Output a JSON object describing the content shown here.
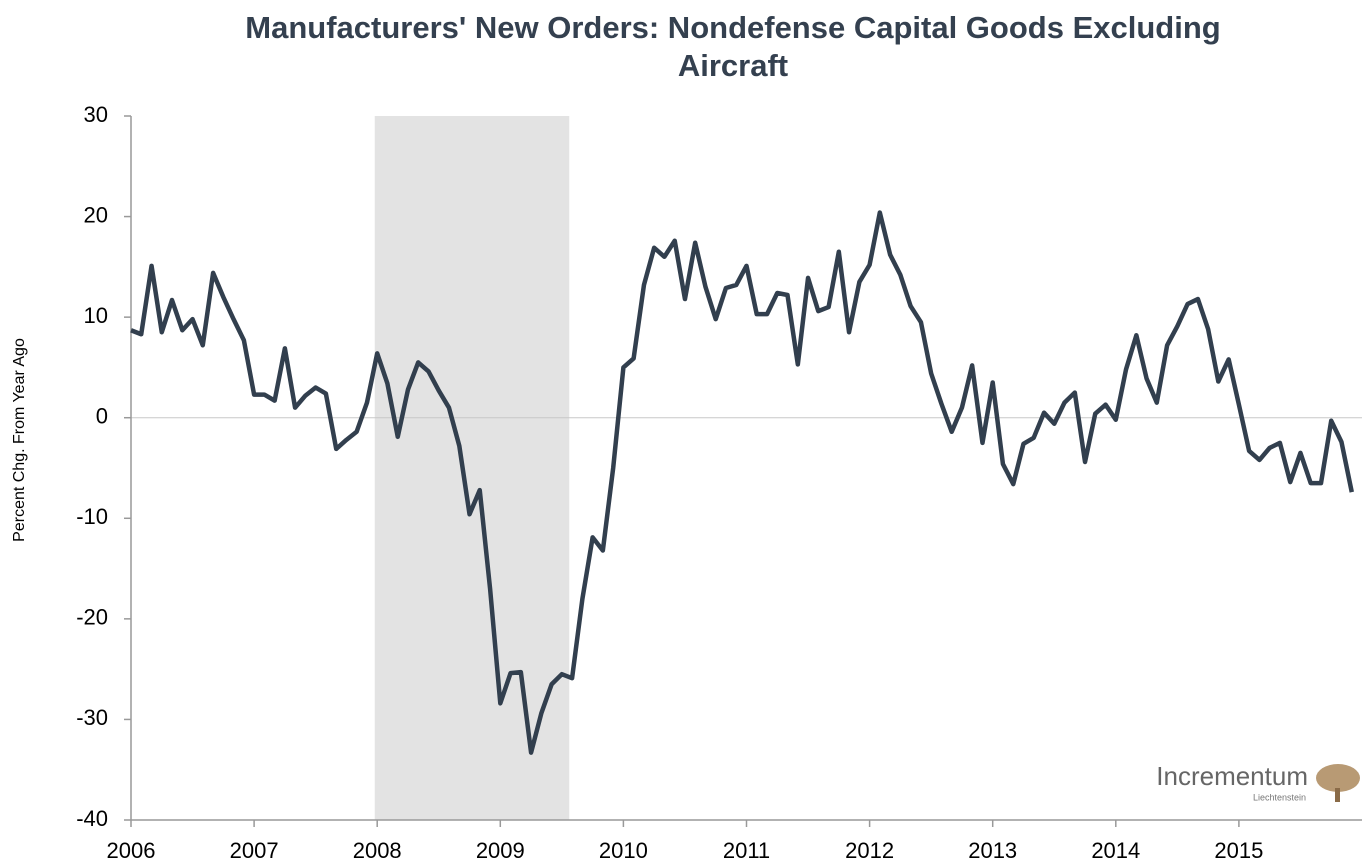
{
  "chart_data": {
    "type": "line",
    "title": [
      "Manufacturers' New Orders: Nondefense Capital Goods Excluding",
      "Aircraft"
    ],
    "ylabel": "Percent Chg. From Year Ago",
    "logo": {
      "name": "Incrementum",
      "sub": "Liechtenstein"
    },
    "xlim": [
      2006,
      2016
    ],
    "xticks": [
      2006,
      2007,
      2008,
      2009,
      2010,
      2011,
      2012,
      2013,
      2014,
      2015
    ],
    "ylim": [
      -40,
      30
    ],
    "yticks": [
      -40,
      -30,
      -20,
      -10,
      0,
      10,
      20,
      30
    ],
    "reference_line": 0,
    "shade": [
      2007.98,
      2009.56
    ],
    "shade_color": "#e3e3e3",
    "x": [
      2006,
      2006.083,
      2006.167,
      2006.25,
      2006.333,
      2006.417,
      2006.5,
      2006.583,
      2006.667,
      2006.75,
      2006.833,
      2006.917,
      2007,
      2007.083,
      2007.167,
      2007.25,
      2007.333,
      2007.417,
      2007.5,
      2007.583,
      2007.667,
      2007.75,
      2007.833,
      2007.917,
      2008,
      2008.083,
      2008.167,
      2008.25,
      2008.333,
      2008.417,
      2008.5,
      2008.583,
      2008.667,
      2008.75,
      2008.833,
      2008.917,
      2009,
      2009.083,
      2009.167,
      2009.25,
      2009.333,
      2009.417,
      2009.5,
      2009.583,
      2009.667,
      2009.75,
      2009.833,
      2009.917,
      2010,
      2010.083,
      2010.167,
      2010.25,
      2010.333,
      2010.417,
      2010.5,
      2010.583,
      2010.667,
      2010.75,
      2010.833,
      2010.917,
      2011,
      2011.083,
      2011.167,
      2011.25,
      2011.333,
      2011.417,
      2011.5,
      2011.583,
      2011.667,
      2011.75,
      2011.833,
      2011.917,
      2012,
      2012.083,
      2012.167,
      2012.25,
      2012.333,
      2012.417,
      2012.5,
      2012.583,
      2012.667,
      2012.75,
      2012.833,
      2012.917,
      2013,
      2013.083,
      2013.167,
      2013.25,
      2013.333,
      2013.417,
      2013.5,
      2013.583,
      2013.667,
      2013.75,
      2013.833,
      2013.917,
      2014,
      2014.083,
      2014.167,
      2014.25,
      2014.333,
      2014.417,
      2014.5,
      2014.583,
      2014.667,
      2014.75,
      2014.833,
      2014.917,
      2015,
      2015.083,
      2015.167,
      2015.25,
      2015.333,
      2015.417,
      2015.5,
      2015.583,
      2015.667,
      2015.75,
      2015.833,
      2015.917
    ],
    "series": [
      {
        "color": "#323f4e",
        "values": [
          8.7,
          8.3,
          15.1,
          8.5,
          11.7,
          8.7,
          9.8,
          7.2,
          14.4,
          12.0,
          9.8,
          7.7,
          2.3,
          2.3,
          1.7,
          6.9,
          1.0,
          2.2,
          3.0,
          2.4,
          -3.1,
          -2.2,
          -1.4,
          1.5,
          6.4,
          3.4,
          -1.9,
          2.8,
          5.5,
          4.6,
          2.7,
          1.0,
          -2.8,
          -9.6,
          -7.2,
          -17.0,
          -28.4,
          -25.4,
          -25.3,
          -33.3,
          -29.4,
          -26.5,
          -25.5,
          -25.9,
          -18.0,
          -11.9,
          -13.2,
          -5.0,
          5.0,
          5.9,
          13.2,
          16.9,
          16.0,
          17.6,
          11.8,
          17.4,
          13.0,
          9.8,
          12.9,
          13.2,
          15.1,
          10.3,
          10.3,
          12.4,
          12.2,
          5.3,
          13.9,
          10.6,
          11.0,
          16.5,
          8.5,
          13.5,
          15.2,
          20.4,
          16.2,
          14.2,
          11.1,
          9.5,
          4.4,
          1.4,
          -1.4,
          1.0,
          5.2,
          -2.5,
          3.5,
          -4.6,
          -6.6,
          -2.6,
          -2.0,
          0.5,
          -0.6,
          1.5,
          2.5,
          -4.4,
          0.4,
          1.3,
          -0.2,
          4.8,
          8.2,
          3.9,
          1.5,
          7.2,
          9.1,
          11.3,
          11.8,
          8.8,
          3.6,
          5.8,
          1.3,
          -3.3,
          -4.2,
          -3.0,
          -2.5,
          -6.4,
          -3.5,
          -6.5,
          -6.5,
          -0.3,
          -2.4,
          -7.4
        ]
      }
    ]
  }
}
